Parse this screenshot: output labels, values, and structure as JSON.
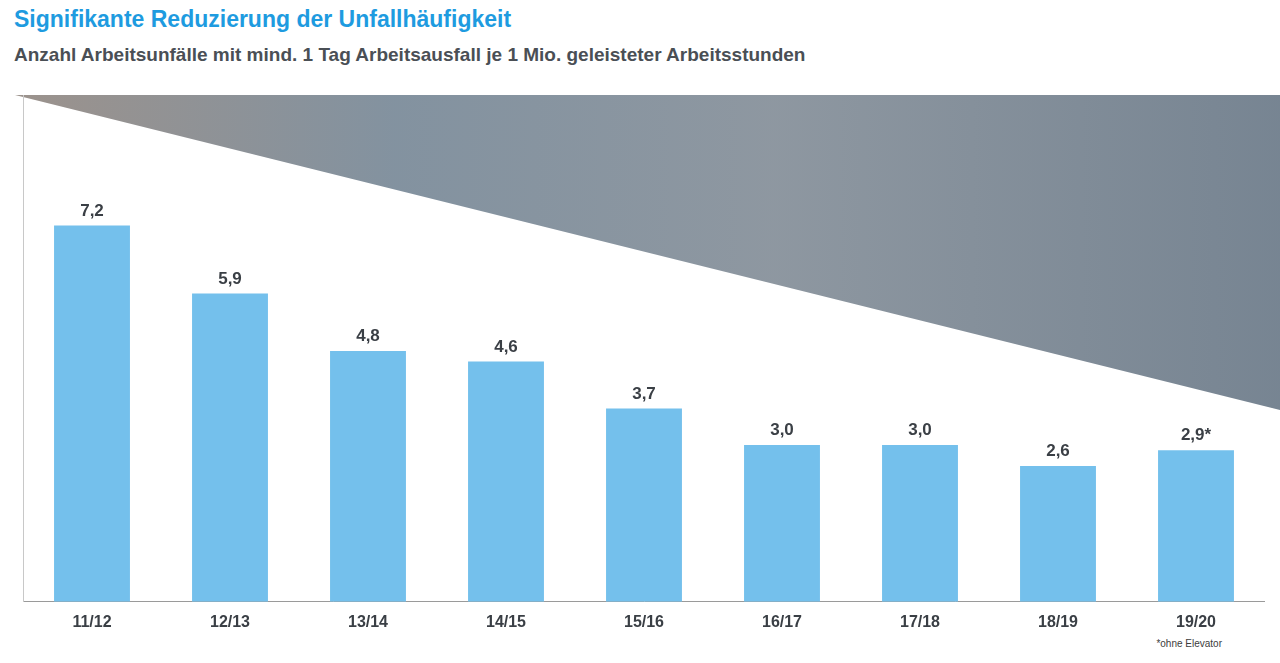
{
  "chart_data": {
    "type": "bar",
    "title": "Signifikante Reduzierung der Unfallhäufigkeit",
    "subtitle": "Anzahl Arbeitsunfälle mit mind. 1 Tag Arbeitsausfall je 1 Mio. geleisteter Arbeitsstunden",
    "categories": [
      "11/12",
      "12/13",
      "13/14",
      "14/15",
      "15/16",
      "16/17",
      "17/18",
      "18/19",
      "19/20"
    ],
    "values": [
      7.2,
      5.9,
      4.8,
      4.6,
      3.7,
      3.0,
      3.0,
      2.6,
      2.9
    ],
    "value_labels": [
      "7,2",
      "5,9",
      "4,8",
      "4,6",
      "3,7",
      "3,0",
      "3,0",
      "2,6",
      "2,9*"
    ],
    "data_labels": true,
    "color": "#74c0ec",
    "ylim": [
      0,
      9.7
    ],
    "yticks": [],
    "grid": false,
    "tick_labels": "x",
    "footnote": "*ohne Elevator"
  }
}
